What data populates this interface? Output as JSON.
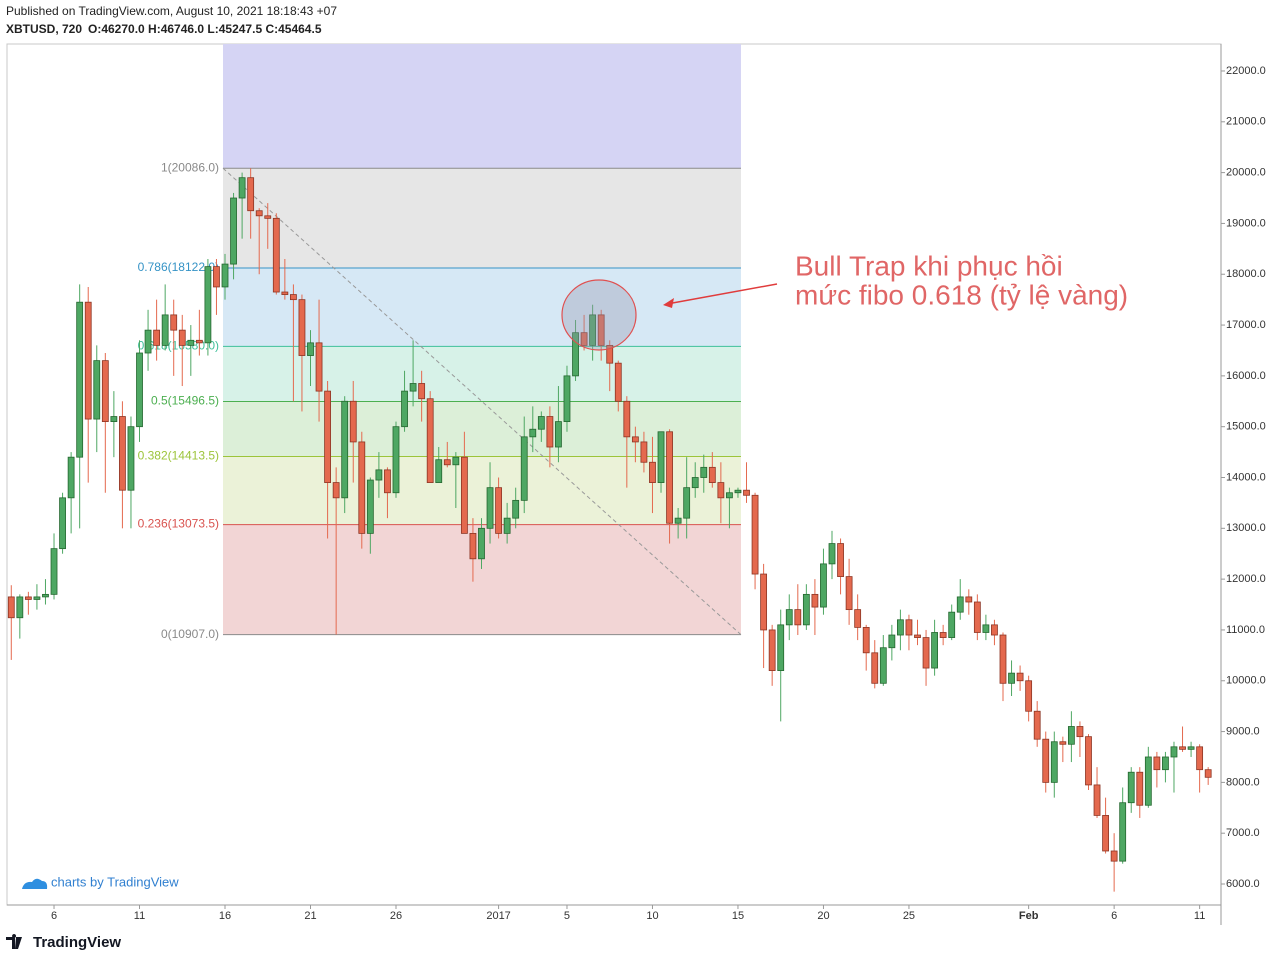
{
  "header": {
    "published": "Published on TradingView.com, August 10, 2021 18:18:43 +07",
    "symbol": "XBTUSD, 720",
    "ohlc": "O:46270.0 H:46746.0 L:45247.5 C:45464.5"
  },
  "chart_data": {
    "type": "candlestick",
    "up_color": "#4ea763",
    "down_color": "#e4694e",
    "ohlc": [
      [
        11650,
        11880,
        10410,
        11240
      ],
      [
        11240,
        11700,
        10830,
        11650
      ],
      [
        11650,
        11750,
        11300,
        11600
      ],
      [
        11600,
        11900,
        11400,
        11650
      ],
      [
        11650,
        12000,
        11500,
        11700
      ],
      [
        11700,
        12900,
        11600,
        12600
      ],
      [
        12600,
        13700,
        12500,
        13600
      ],
      [
        13600,
        14500,
        12900,
        14400
      ],
      [
        14400,
        17800,
        13000,
        17450
      ],
      [
        17450,
        17750,
        13900,
        15150
      ],
      [
        15150,
        16600,
        14500,
        16300
      ],
      [
        16300,
        16450,
        13700,
        15100
      ],
      [
        15100,
        15700,
        14400,
        15200
      ],
      [
        15200,
        15500,
        13000,
        13750
      ],
      [
        13750,
        15200,
        13000,
        15000
      ],
      [
        15000,
        16700,
        14700,
        16450
      ],
      [
        16450,
        17300,
        16100,
        16900
      ],
      [
        16900,
        17500,
        16300,
        16600
      ],
      [
        16600,
        17800,
        16500,
        17200
      ],
      [
        17200,
        17500,
        16000,
        16900
      ],
      [
        16900,
        17200,
        15800,
        16600
      ],
      [
        16600,
        17000,
        16000,
        16700
      ],
      [
        16700,
        17300,
        16400,
        16650
      ],
      [
        16650,
        18300,
        16400,
        18150
      ],
      [
        18150,
        18300,
        17200,
        17750
      ],
      [
        17750,
        18400,
        17500,
        18200
      ],
      [
        18200,
        19600,
        17900,
        19500
      ],
      [
        19500,
        20000,
        18700,
        19900
      ],
      [
        19900,
        20086,
        18700,
        19250
      ],
      [
        19250,
        19300,
        18000,
        19150
      ],
      [
        19150,
        19400,
        18500,
        19100
      ],
      [
        19100,
        19200,
        17600,
        17650
      ],
      [
        17650,
        18300,
        17500,
        17600
      ],
      [
        17600,
        17800,
        15500,
        17500
      ],
      [
        17500,
        17600,
        15300,
        16400
      ],
      [
        16400,
        16900,
        15800,
        16650
      ],
      [
        16650,
        17500,
        15100,
        15700
      ],
      [
        15700,
        15900,
        12800,
        13900
      ],
      [
        13900,
        14200,
        10907,
        13600
      ],
      [
        13600,
        15600,
        13300,
        15500
      ],
      [
        15500,
        15900,
        13900,
        14700
      ],
      [
        14700,
        14900,
        12600,
        12900
      ],
      [
        12900,
        14000,
        12500,
        13950
      ],
      [
        13950,
        14500,
        13600,
        14150
      ],
      [
        14150,
        14200,
        13200,
        13700
      ],
      [
        13700,
        15100,
        13600,
        15000
      ],
      [
        15000,
        16100,
        14900,
        15700
      ],
      [
        15700,
        16700,
        15400,
        15850
      ],
      [
        15850,
        16100,
        15100,
        15550
      ],
      [
        15550,
        15700,
        13900,
        13900
      ],
      [
        13900,
        14600,
        13900,
        14350
      ],
      [
        14350,
        14700,
        14200,
        14250
      ],
      [
        14250,
        14500,
        13400,
        14400
      ],
      [
        14400,
        14900,
        12900,
        12900
      ],
      [
        12900,
        13200,
        11950,
        12400
      ],
      [
        12400,
        13200,
        12200,
        13000
      ],
      [
        13000,
        14300,
        12700,
        13800
      ],
      [
        13800,
        14000,
        12800,
        12900
      ],
      [
        12900,
        13500,
        12700,
        13200
      ],
      [
        13200,
        13800,
        13000,
        13550
      ],
      [
        13550,
        15200,
        13300,
        14800
      ],
      [
        14800,
        15400,
        14500,
        14950
      ],
      [
        14950,
        15300,
        14700,
        15200
      ],
      [
        15200,
        15400,
        14200,
        14600
      ],
      [
        14600,
        15800,
        14300,
        15100
      ],
      [
        15100,
        16200,
        14900,
        16000
      ],
      [
        16000,
        17100,
        15900,
        16850
      ],
      [
        16850,
        17200,
        16500,
        16600
      ],
      [
        16600,
        17400,
        16300,
        17200
      ],
      [
        17200,
        17300,
        16300,
        16600
      ],
      [
        16600,
        16700,
        15700,
        16250
      ],
      [
        16250,
        16300,
        15300,
        15500
      ],
      [
        15500,
        15600,
        13800,
        14800
      ],
      [
        14800,
        15000,
        14300,
        14700
      ],
      [
        14700,
        14900,
        14100,
        14300
      ],
      [
        14300,
        14800,
        13300,
        13900
      ],
      [
        13900,
        14900,
        13700,
        14900
      ],
      [
        14900,
        14950,
        12700,
        13100
      ],
      [
        13100,
        13400,
        12800,
        13200
      ],
      [
        13200,
        14400,
        12800,
        13800
      ],
      [
        13800,
        14300,
        13600,
        14000
      ],
      [
        14000,
        14450,
        13700,
        14200
      ],
      [
        14200,
        14500,
        13800,
        13900
      ],
      [
        13900,
        14300,
        13100,
        13600
      ],
      [
        13600,
        13800,
        13000,
        13700
      ],
      [
        13700,
        13800,
        13600,
        13750
      ],
      [
        13750,
        14300,
        13500,
        13650
      ],
      [
        13650,
        13700,
        11800,
        12100
      ],
      [
        12100,
        12300,
        10250,
        11000
      ],
      [
        11000,
        11100,
        9900,
        10200
      ],
      [
        10200,
        11400,
        9200,
        11100
      ],
      [
        11100,
        11700,
        10800,
        11400
      ],
      [
        11400,
        11900,
        10900,
        11100
      ],
      [
        11100,
        11900,
        11000,
        11700
      ],
      [
        11700,
        12000,
        10900,
        11450
      ],
      [
        11450,
        12600,
        11300,
        12300
      ],
      [
        12300,
        12950,
        12000,
        12700
      ],
      [
        12700,
        12800,
        11700,
        12050
      ],
      [
        12050,
        12400,
        11100,
        11400
      ],
      [
        11400,
        11700,
        10800,
        11050
      ],
      [
        11050,
        11100,
        10200,
        10550
      ],
      [
        10550,
        10800,
        9850,
        9950
      ],
      [
        9950,
        10900,
        9900,
        10650
      ],
      [
        10650,
        11100,
        10400,
        10900
      ],
      [
        10900,
        11400,
        10600,
        11200
      ],
      [
        11200,
        11300,
        10600,
        10900
      ],
      [
        10900,
        11200,
        10700,
        10850
      ],
      [
        10850,
        11000,
        9900,
        10250
      ],
      [
        10250,
        11200,
        10100,
        10950
      ],
      [
        10950,
        11100,
        10700,
        10850
      ],
      [
        10850,
        11500,
        10800,
        11350
      ],
      [
        11350,
        12000,
        11200,
        11650
      ],
      [
        11650,
        11800,
        11300,
        11550
      ],
      [
        11550,
        11700,
        10800,
        10950
      ],
      [
        10950,
        11300,
        10800,
        11100
      ],
      [
        11100,
        11200,
        10700,
        10900
      ],
      [
        10900,
        10950,
        9600,
        9950
      ],
      [
        9950,
        10400,
        9700,
        10150
      ],
      [
        10150,
        10300,
        9800,
        10000
      ],
      [
        10000,
        10100,
        9200,
        9400
      ],
      [
        9400,
        9600,
        8700,
        8850
      ],
      [
        8850,
        9000,
        7800,
        8000
      ],
      [
        8000,
        9000,
        7700,
        8800
      ],
      [
        8800,
        8900,
        8400,
        8750
      ],
      [
        8750,
        9400,
        8400,
        9100
      ],
      [
        9100,
        9200,
        8500,
        8900
      ],
      [
        8900,
        8950,
        7850,
        7950
      ],
      [
        7950,
        8300,
        7300,
        7350
      ],
      [
        7350,
        7700,
        6600,
        6650
      ],
      [
        6650,
        7000,
        5850,
        6450
      ],
      [
        6450,
        7900,
        6400,
        7600
      ],
      [
        7600,
        8300,
        7400,
        8200
      ],
      [
        8200,
        8300,
        7300,
        7550
      ],
      [
        7550,
        8700,
        7500,
        8500
      ],
      [
        8500,
        8600,
        7900,
        8250
      ],
      [
        8250,
        8600,
        8000,
        8500
      ],
      [
        8500,
        8800,
        7800,
        8700
      ],
      [
        8700,
        9100,
        8600,
        8650
      ],
      [
        8650,
        8800,
        8500,
        8700
      ],
      [
        8700,
        8750,
        7800,
        8250
      ],
      [
        8250,
        8300,
        7950,
        8100
      ]
    ],
    "xlim": [
      -0.5,
      141.5
    ],
    "xticks": [
      {
        "value": 5,
        "label": "6"
      },
      {
        "value": 15,
        "label": "11"
      },
      {
        "value": 25,
        "label": "16"
      },
      {
        "value": 35,
        "label": "21"
      },
      {
        "value": 45,
        "label": "26"
      },
      {
        "value": 57,
        "label": "2017"
      },
      {
        "value": 65,
        "label": "5"
      },
      {
        "value": 75,
        "label": "10"
      },
      {
        "value": 85,
        "label": "15"
      },
      {
        "value": 95,
        "label": "20"
      },
      {
        "value": 105,
        "label": "25"
      },
      {
        "value": 119,
        "label": "Feb"
      },
      {
        "value": 129,
        "label": "6"
      },
      {
        "value": 139,
        "label": "11"
      }
    ],
    "ylim": [
      5587,
      22531
    ],
    "yticks": [
      {
        "value": 6000,
        "label": "6000.0"
      },
      {
        "value": 7000,
        "label": "7000.0"
      },
      {
        "value": 8000,
        "label": "8000.0"
      },
      {
        "value": 9000,
        "label": "9000.0"
      },
      {
        "value": 10000,
        "label": "10000.0"
      },
      {
        "value": 11000,
        "label": "11000.0"
      },
      {
        "value": 12000,
        "label": "12000.0"
      },
      {
        "value": 13000,
        "label": "13000.0"
      },
      {
        "value": 14000,
        "label": "14000.0"
      },
      {
        "value": 15000,
        "label": "15000.0"
      },
      {
        "value": 16000,
        "label": "16000.0"
      },
      {
        "value": 17000,
        "label": "17000.0"
      },
      {
        "value": 18000,
        "label": "18000.0"
      },
      {
        "value": 19000,
        "label": "19000.0"
      },
      {
        "value": 20000,
        "label": "20000.0"
      },
      {
        "value": 21000,
        "label": "21000.0"
      },
      {
        "value": 22000,
        "label": "22000.0"
      }
    ],
    "fib": {
      "top_fill": "#d5d4f4",
      "levels": [
        {
          "label": "1(20086.0)",
          "value": 20086,
          "color": "#8a8a8a",
          "fill": "#e6e6e6"
        },
        {
          "label": "0.786(18122.0)",
          "value": 18122,
          "color": "#3593c6",
          "fill": "#d6e8f5"
        },
        {
          "label": "0.618(16580.0)",
          "value": 16580,
          "color": "#3fbf9a",
          "fill": "#d7f2e8"
        },
        {
          "label": "0.5(15496.5)",
          "value": 15496.5,
          "color": "#4caf50",
          "fill": "#dcefd8"
        },
        {
          "label": "0.382(14413.5)",
          "value": 14413.5,
          "color": "#9cc43a",
          "fill": "#ebf2d8"
        },
        {
          "label": "0.236(13073.5)",
          "value": 13073.5,
          "color": "#d9534f",
          "fill": "#f2d5d5"
        },
        {
          "label": "0(10907.0)",
          "value": 10907,
          "color": "#8a8a8a"
        }
      ]
    },
    "annotation": [
      "Bull Trap khi phục hồi",
      "mức fibo 0.618 (tỷ lệ vàng)"
    ],
    "watermark": "charts by TradingView"
  },
  "footer": {
    "brand": "TradingView"
  }
}
